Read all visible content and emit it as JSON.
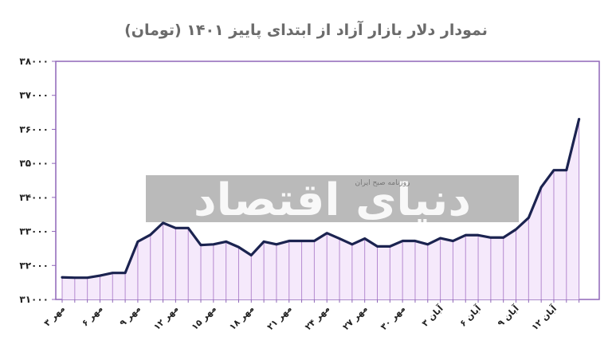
{
  "chart_data": {
    "type": "area",
    "title": "نمودار دلار بازار آزاد از ابتدای پاییز ۱۴۰۱ (تومان)",
    "xlabel": "",
    "ylabel": "",
    "ylim": [
      31000,
      38000
    ],
    "y_ticks": [
      31000,
      32000,
      33000,
      34000,
      35000,
      36000,
      37000,
      38000
    ],
    "y_tick_labels": [
      "۳۱۰۰۰",
      "۳۲۰۰۰",
      "۳۳۰۰۰",
      "۳۴۰۰۰",
      "۳۵۰۰۰",
      "۳۶۰۰۰",
      "۳۷۰۰۰",
      "۳۸۰۰۰"
    ],
    "x_tick_labels": [
      "۳ مهر",
      "۶ مهر",
      "۹ مهر",
      "۱۲ مهر",
      "۱۵ مهر",
      "۱۸ مهر",
      "۲۱ مهر",
      "۲۴ مهر",
      "۲۷ مهر",
      "۳۰ مهر",
      "۳ آبان",
      "۶ آبان",
      "۹ آبان",
      "۱۲ آبان"
    ],
    "x_tick_every": 3,
    "values": [
      31650,
      31640,
      31640,
      31700,
      31780,
      31780,
      32700,
      32900,
      33250,
      33100,
      33100,
      32600,
      32620,
      32700,
      32540,
      32300,
      32700,
      32620,
      32720,
      32720,
      32720,
      32950,
      32790,
      32620,
      32790,
      32560,
      32560,
      32720,
      32720,
      32620,
      32800,
      32720,
      32890,
      32890,
      32820,
      32820,
      33060,
      33400,
      34300,
      34800,
      34800,
      36300
    ],
    "grid": false,
    "legend": "none",
    "colors": {
      "line": "#1b2350",
      "fill": "#f5e9fb",
      "drop_lines": "#b58ad0",
      "frame": "#8f66b8",
      "watermark_band": "#9f9f9f"
    }
  },
  "watermark": {
    "brand": "دنیای اقتصاد",
    "tagline": "روزنامه صبح ایران"
  }
}
